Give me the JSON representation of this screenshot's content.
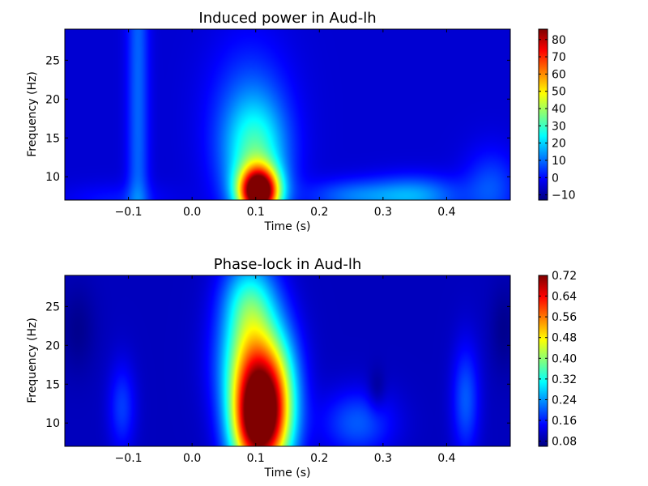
{
  "chart_data": [
    {
      "type": "heatmap",
      "title": "Induced power in Aud-lh",
      "xlabel": "Time (s)",
      "ylabel": "Frequency (Hz)",
      "xlim": [
        -0.2,
        0.5
      ],
      "ylim": [
        7,
        29
      ],
      "xticks": [
        -0.1,
        0.0,
        0.1,
        0.2,
        0.3,
        0.4
      ],
      "xtick_labels": [
        "−0.1",
        "0.0",
        "0.1",
        "0.2",
        "0.3",
        "0.4"
      ],
      "yticks": [
        10,
        15,
        20,
        25
      ],
      "ytick_labels": [
        "10",
        "15",
        "20",
        "25"
      ],
      "colorbar": {
        "vmin": -13,
        "vmax": 86,
        "ticks": [
          -10,
          0,
          10,
          20,
          30,
          40,
          50,
          60,
          70,
          80
        ],
        "tick_labels": [
          "−10",
          "0",
          "10",
          "20",
          "30",
          "40",
          "50",
          "60",
          "70",
          "80"
        ]
      },
      "colormap": "jet",
      "baseline": -5,
      "features": [
        {
          "t": 0.105,
          "f": 8.0,
          "st": 0.022,
          "sf": 2.2,
          "amp": 96
        },
        {
          "t": 0.1,
          "f": 12.5,
          "st": 0.035,
          "sf": 5.0,
          "amp": 28
        },
        {
          "t": 0.09,
          "f": 18.0,
          "st": 0.045,
          "sf": 7.0,
          "amp": 12
        },
        {
          "t": -0.085,
          "f": 20.0,
          "st": 0.012,
          "sf": 40.0,
          "amp": 14
        },
        {
          "t": 0.35,
          "f": 7.5,
          "st": 0.05,
          "sf": 1.8,
          "amp": 20
        },
        {
          "t": 0.25,
          "f": 7.5,
          "st": 0.05,
          "sf": 1.5,
          "amp": 14
        },
        {
          "t": 0.47,
          "f": 8.5,
          "st": 0.03,
          "sf": 3.5,
          "amp": 12
        },
        {
          "t": -0.12,
          "f": 7.0,
          "st": 0.06,
          "sf": 1.5,
          "amp": 6
        }
      ]
    },
    {
      "type": "heatmap",
      "title": "Phase-lock in Aud-lh",
      "xlabel": "Time (s)",
      "ylabel": "Frequency (Hz)",
      "xlim": [
        -0.2,
        0.5
      ],
      "ylim": [
        7,
        29
      ],
      "xticks": [
        -0.1,
        0.0,
        0.1,
        0.2,
        0.3,
        0.4
      ],
      "xtick_labels": [
        "−0.1",
        "0.0",
        "0.1",
        "0.2",
        "0.3",
        "0.4"
      ],
      "yticks": [
        10,
        15,
        20,
        25
      ],
      "ytick_labels": [
        "10",
        "15",
        "20",
        "25"
      ],
      "colorbar": {
        "vmin": 0.06,
        "vmax": 0.72,
        "ticks": [
          0.08,
          0.16,
          0.24,
          0.32,
          0.4,
          0.48,
          0.56,
          0.64,
          0.72
        ],
        "tick_labels": [
          "0.08",
          "0.16",
          "0.24",
          "0.32",
          "0.40",
          "0.48",
          "0.56",
          "0.64",
          "0.72"
        ]
      },
      "colormap": "jet",
      "baseline": 0.1,
      "features": [
        {
          "t": 0.1,
          "f": 10.0,
          "st": 0.028,
          "sf": 5.0,
          "amp": 0.6
        },
        {
          "t": 0.095,
          "f": 18.0,
          "st": 0.035,
          "sf": 5.0,
          "amp": 0.3
        },
        {
          "t": 0.09,
          "f": 26.0,
          "st": 0.03,
          "sf": 4.0,
          "amp": 0.18
        },
        {
          "t": 0.135,
          "f": 12.0,
          "st": 0.025,
          "sf": 6.0,
          "amp": 0.25
        },
        {
          "t": -0.11,
          "f": 12.0,
          "st": 0.015,
          "sf": 4.0,
          "amp": 0.08
        },
        {
          "t": 0.26,
          "f": 10.0,
          "st": 0.04,
          "sf": 3.0,
          "amp": 0.1
        },
        {
          "t": 0.43,
          "f": 13.0,
          "st": 0.015,
          "sf": 5.0,
          "amp": 0.1
        },
        {
          "t": -0.18,
          "f": 22.0,
          "st": 0.02,
          "sf": 4.0,
          "amp": -0.03
        },
        {
          "t": 0.29,
          "f": 14.0,
          "st": 0.01,
          "sf": 2.0,
          "amp": -0.04
        },
        {
          "t": 0.49,
          "f": 22.0,
          "st": 0.015,
          "sf": 4.0,
          "amp": -0.03
        }
      ]
    }
  ]
}
